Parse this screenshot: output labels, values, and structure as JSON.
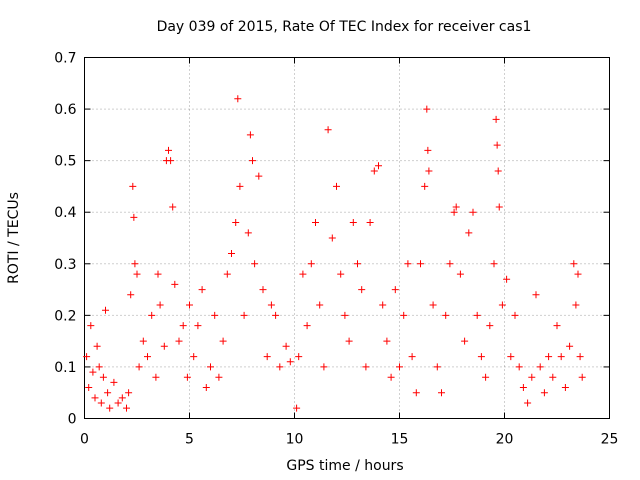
{
  "chart_data": {
    "type": "scatter",
    "title": "Day 039 of 2015, Rate Of TEC Index for receiver cas1",
    "xlabel": "GPS time / hours",
    "ylabel": "ROTI / TECUs",
    "xlim": [
      0,
      25
    ],
    "ylim": [
      0,
      0.7
    ],
    "xticks": [
      0,
      5,
      10,
      15,
      20,
      25
    ],
    "yticks": [
      0,
      0.1,
      0.2,
      0.3,
      0.4,
      0.5,
      0.6,
      0.7
    ],
    "xtick_labels": [
      "0",
      "5",
      "10",
      "15",
      "20",
      "25"
    ],
    "ytick_labels": [
      "0",
      "0.1",
      "0.2",
      "0.3",
      "0.4",
      "0.5",
      "0.6",
      "0.7"
    ],
    "grid": true,
    "marker": "+",
    "color": "#ff0000",
    "series": [
      {
        "name": "ROTI",
        "points": [
          [
            0.1,
            0.12
          ],
          [
            0.2,
            0.06
          ],
          [
            0.3,
            0.18
          ],
          [
            0.4,
            0.09
          ],
          [
            0.5,
            0.04
          ],
          [
            0.6,
            0.14
          ],
          [
            0.7,
            0.1
          ],
          [
            0.8,
            0.03
          ],
          [
            0.9,
            0.08
          ],
          [
            1.0,
            0.21
          ],
          [
            1.1,
            0.05
          ],
          [
            1.2,
            0.02
          ],
          [
            1.4,
            0.07
          ],
          [
            1.6,
            0.03
          ],
          [
            1.8,
            0.04
          ],
          [
            2.0,
            0.02
          ],
          [
            2.1,
            0.05
          ],
          [
            2.2,
            0.24
          ],
          [
            2.3,
            0.45
          ],
          [
            2.35,
            0.39
          ],
          [
            2.4,
            0.3
          ],
          [
            2.5,
            0.28
          ],
          [
            2.6,
            0.1
          ],
          [
            2.8,
            0.15
          ],
          [
            3.0,
            0.12
          ],
          [
            3.2,
            0.2
          ],
          [
            3.4,
            0.08
          ],
          [
            3.5,
            0.28
          ],
          [
            3.6,
            0.22
          ],
          [
            3.8,
            0.14
          ],
          [
            3.9,
            0.5
          ],
          [
            4.0,
            0.52
          ],
          [
            4.1,
            0.5
          ],
          [
            4.2,
            0.41
          ],
          [
            4.3,
            0.26
          ],
          [
            4.5,
            0.15
          ],
          [
            4.7,
            0.18
          ],
          [
            4.9,
            0.08
          ],
          [
            5.0,
            0.22
          ],
          [
            5.2,
            0.12
          ],
          [
            5.4,
            0.18
          ],
          [
            5.6,
            0.25
          ],
          [
            5.8,
            0.06
          ],
          [
            6.0,
            0.1
          ],
          [
            6.2,
            0.2
          ],
          [
            6.4,
            0.08
          ],
          [
            6.6,
            0.15
          ],
          [
            6.8,
            0.28
          ],
          [
            7.0,
            0.32
          ],
          [
            7.2,
            0.38
          ],
          [
            7.3,
            0.62
          ],
          [
            7.4,
            0.45
          ],
          [
            7.6,
            0.2
          ],
          [
            7.8,
            0.36
          ],
          [
            7.9,
            0.55
          ],
          [
            8.0,
            0.5
          ],
          [
            8.1,
            0.3
          ],
          [
            8.3,
            0.47
          ],
          [
            8.5,
            0.25
          ],
          [
            8.7,
            0.12
          ],
          [
            8.9,
            0.22
          ],
          [
            9.1,
            0.2
          ],
          [
            9.3,
            0.1
          ],
          [
            9.6,
            0.14
          ],
          [
            9.8,
            0.11
          ],
          [
            10.1,
            0.02
          ],
          [
            10.2,
            0.12
          ],
          [
            10.4,
            0.28
          ],
          [
            10.6,
            0.18
          ],
          [
            10.8,
            0.3
          ],
          [
            11.0,
            0.38
          ],
          [
            11.2,
            0.22
          ],
          [
            11.4,
            0.1
          ],
          [
            11.6,
            0.56
          ],
          [
            11.8,
            0.35
          ],
          [
            12.0,
            0.45
          ],
          [
            12.2,
            0.28
          ],
          [
            12.4,
            0.2
          ],
          [
            12.6,
            0.15
          ],
          [
            12.8,
            0.38
          ],
          [
            13.0,
            0.3
          ],
          [
            13.2,
            0.25
          ],
          [
            13.4,
            0.1
          ],
          [
            13.6,
            0.38
          ],
          [
            13.8,
            0.48
          ],
          [
            14.0,
            0.49
          ],
          [
            14.2,
            0.22
          ],
          [
            14.4,
            0.15
          ],
          [
            14.6,
            0.08
          ],
          [
            14.8,
            0.25
          ],
          [
            15.0,
            0.1
          ],
          [
            15.2,
            0.2
          ],
          [
            15.4,
            0.3
          ],
          [
            15.6,
            0.12
          ],
          [
            15.8,
            0.05
          ],
          [
            16.0,
            0.3
          ],
          [
            16.2,
            0.45
          ],
          [
            16.3,
            0.6
          ],
          [
            16.35,
            0.52
          ],
          [
            16.4,
            0.48
          ],
          [
            16.6,
            0.22
          ],
          [
            16.8,
            0.1
          ],
          [
            17.0,
            0.05
          ],
          [
            17.2,
            0.2
          ],
          [
            17.4,
            0.3
          ],
          [
            17.6,
            0.4
          ],
          [
            17.7,
            0.41
          ],
          [
            17.9,
            0.28
          ],
          [
            18.1,
            0.15
          ],
          [
            18.3,
            0.36
          ],
          [
            18.5,
            0.4
          ],
          [
            18.7,
            0.2
          ],
          [
            18.9,
            0.12
          ],
          [
            19.1,
            0.08
          ],
          [
            19.3,
            0.18
          ],
          [
            19.5,
            0.3
          ],
          [
            19.6,
            0.58
          ],
          [
            19.65,
            0.53
          ],
          [
            19.7,
            0.48
          ],
          [
            19.75,
            0.41
          ],
          [
            19.9,
            0.22
          ],
          [
            20.1,
            0.27
          ],
          [
            20.3,
            0.12
          ],
          [
            20.5,
            0.2
          ],
          [
            20.7,
            0.1
          ],
          [
            20.9,
            0.06
          ],
          [
            21.1,
            0.03
          ],
          [
            21.3,
            0.08
          ],
          [
            21.5,
            0.24
          ],
          [
            21.7,
            0.1
          ],
          [
            21.9,
            0.05
          ],
          [
            22.1,
            0.12
          ],
          [
            22.3,
            0.08
          ],
          [
            22.5,
            0.18
          ],
          [
            22.7,
            0.12
          ],
          [
            22.9,
            0.06
          ],
          [
            23.1,
            0.14
          ],
          [
            23.3,
            0.3
          ],
          [
            23.4,
            0.22
          ],
          [
            23.5,
            0.28
          ],
          [
            23.6,
            0.12
          ],
          [
            23.7,
            0.08
          ]
        ]
      }
    ]
  }
}
